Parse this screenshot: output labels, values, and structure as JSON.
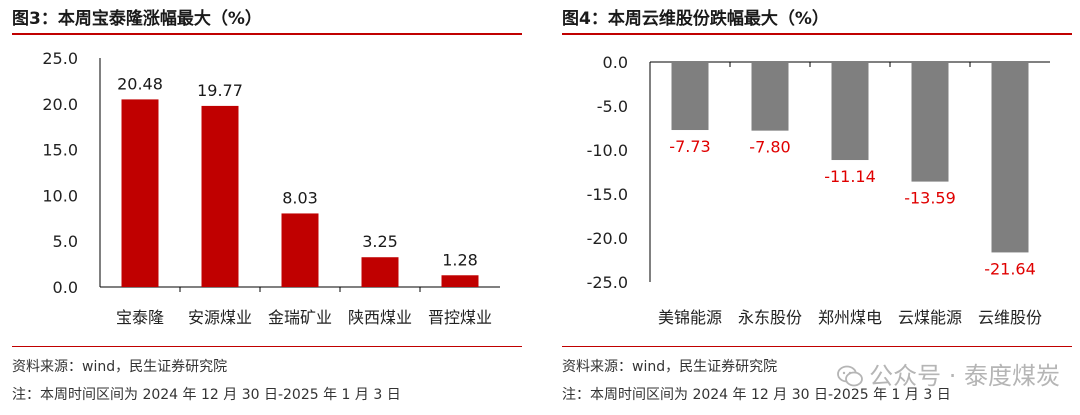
{
  "chart_data": [
    {
      "type": "bar",
      "title": "图3：本周宝泰隆涨幅最大（%）",
      "categories": [
        "宝泰隆",
        "安源煤业",
        "金瑞矿业",
        "陕西煤业",
        "晋控煤业"
      ],
      "values": [
        20.48,
        19.77,
        8.03,
        3.25,
        1.28
      ],
      "value_labels": [
        "20.48",
        "19.77",
        "8.03",
        "3.25",
        "1.28"
      ],
      "yticks": [
        "0.0",
        "5.0",
        "10.0",
        "15.0",
        "20.0",
        "25.0"
      ],
      "ylim": [
        0,
        25
      ],
      "bar_color": "#c00000",
      "label_color": "#1a1a1a",
      "source": "资料来源：wind，民生证券研究院",
      "period": "注：本周时间区间为 2024 年 12 月 30 日-2025 年 1 月 3 日"
    },
    {
      "type": "bar",
      "title": "图4：本周云维股份跌幅最大（%）",
      "categories": [
        "美锦能源",
        "永东股份",
        "郑州煤电",
        "云煤能源",
        "云维股份"
      ],
      "values": [
        -7.73,
        -7.8,
        -11.14,
        -13.59,
        -21.64
      ],
      "value_labels": [
        "-7.73",
        "-7.80",
        "-11.14",
        "-13.59",
        "-21.64"
      ],
      "yticks": [
        "0.0",
        "-5.0",
        "-10.0",
        "-15.0",
        "-20.0",
        "-25.0"
      ],
      "ylim": [
        -25,
        0
      ],
      "bar_color": "#7f7f7f",
      "label_color": "#e00000",
      "source": "资料来源：wind，民生证券研究院",
      "period": "注：本周时间区间为 2024 年 12 月 30 日-2025 年 1 月 3 日"
    }
  ],
  "watermark": {
    "text": "公众号 · 泰度煤炭",
    "icon": "wechat-icon"
  }
}
